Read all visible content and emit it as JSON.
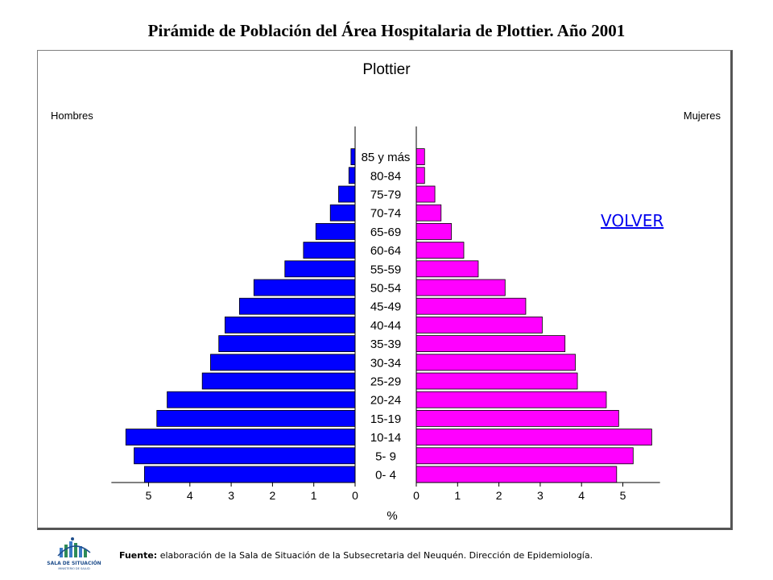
{
  "page": {
    "title": "Pirámide de Población del Área Hospitalaria de Plottier. Año 2001",
    "link_label": "VOLVER",
    "source_label": "Fuente:",
    "source_text": " elaboración de la Sala de Situación de la Subsecretaria del Neuquén. Dirección de Epidemiología.",
    "logo": {
      "title": "SALA DE SITUACIÓN",
      "subtitle": "MINISTERIO DE SALUD",
      "icon": "sala-de-situacion-logo"
    }
  },
  "chart_data": {
    "type": "bar",
    "subtype": "population-pyramid",
    "title": "Plottier",
    "xlabel": "%",
    "left_label": "Hombres",
    "right_label": "Mujeres",
    "categories": [
      "85 y más",
      "80-84",
      "75-79",
      "70-74",
      "65-69",
      "60-64",
      "55-59",
      "50-54",
      "45-49",
      "40-44",
      "35-39",
      "30-34",
      "25-29",
      "20-24",
      "15-19",
      "10-14",
      "5- 9",
      "0- 4"
    ],
    "series": [
      {
        "name": "Hombres",
        "color": "#0000ff",
        "values": [
          0.1,
          0.15,
          0.4,
          0.6,
          0.95,
          1.25,
          1.7,
          2.45,
          2.8,
          3.15,
          3.3,
          3.5,
          3.7,
          4.55,
          4.8,
          5.55,
          5.35,
          5.1
        ]
      },
      {
        "name": "Mujeres",
        "color": "#ff00ff",
        "values": [
          0.2,
          0.2,
          0.45,
          0.6,
          0.85,
          1.15,
          1.5,
          2.15,
          2.65,
          3.05,
          3.6,
          3.85,
          3.9,
          4.6,
          4.9,
          5.7,
          5.25,
          4.85
        ]
      }
    ],
    "ticks": [
      0,
      1,
      2,
      3,
      4,
      5
    ],
    "xlim": [
      0,
      5.9
    ],
    "grid": false
  }
}
